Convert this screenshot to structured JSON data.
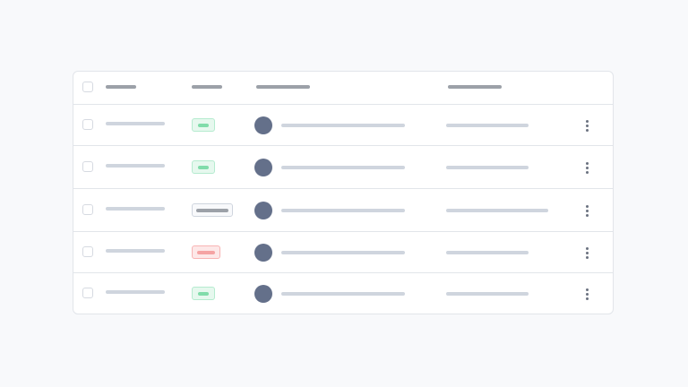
{
  "colors": {
    "background": "#f8f9fb",
    "border": "#e2e5ea",
    "header_placeholder": "#9ca1a8",
    "row_placeholder": "#cfd5de",
    "avatar": "#64708a",
    "status": {
      "success": {
        "bg": "#e6f8ee",
        "border": "#b5ebcf",
        "fill": "#80dcaa"
      },
      "neutral": {
        "bg": "#f8f9fb",
        "border": "#cfd5de",
        "fill": "#9ca1a8"
      },
      "danger": {
        "bg": "#fde8e8",
        "border": "#f8b4b4",
        "fill": "#f5a3a3"
      }
    }
  },
  "rows": [
    {
      "status": "success",
      "checked": false,
      "wide_last": false
    },
    {
      "status": "success",
      "checked": false,
      "wide_last": false
    },
    {
      "status": "neutral",
      "checked": false,
      "wide_last": true
    },
    {
      "status": "danger",
      "checked": false,
      "wide_last": false
    },
    {
      "status": "success",
      "checked": false,
      "wide_last": false
    }
  ],
  "row_menu_icon": "more-vertical-icon",
  "row_select_icon": "checkbox-icon"
}
